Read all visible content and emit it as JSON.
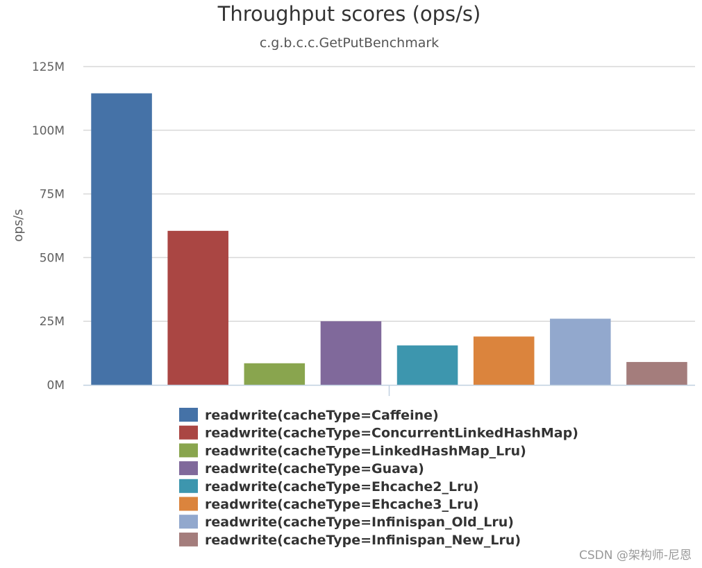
{
  "chart_data": {
    "type": "bar",
    "title": "Throughput scores (ops/s)",
    "subtitle": "c.g.b.c.c.GetPutBenchmark",
    "ylabel": "ops/s",
    "xlabel": "",
    "ylim": [
      0,
      125000000
    ],
    "yticks": [
      {
        "value": 0,
        "label": "0M"
      },
      {
        "value": 25000000,
        "label": "25M"
      },
      {
        "value": 50000000,
        "label": "50M"
      },
      {
        "value": 75000000,
        "label": "75M"
      },
      {
        "value": 100000000,
        "label": "100M"
      },
      {
        "value": 125000000,
        "label": "125M"
      }
    ],
    "grid": true,
    "legend_position": "bottom",
    "series": [
      {
        "name": "readwrite(cacheType=Caffeine)",
        "value": 114500000,
        "color": "#4572a7"
      },
      {
        "name": "readwrite(cacheType=ConcurrentLinkedHashMap)",
        "value": 60500000,
        "color": "#aa4643"
      },
      {
        "name": "readwrite(cacheType=LinkedHashMap_Lru)",
        "value": 8500000,
        "color": "#89a54e"
      },
      {
        "name": "readwrite(cacheType=Guava)",
        "value": 25000000,
        "color": "#80699b"
      },
      {
        "name": "readwrite(cacheType=Ehcache2_Lru)",
        "value": 15500000,
        "color": "#3d96ae"
      },
      {
        "name": "readwrite(cacheType=Ehcache3_Lru)",
        "value": 19000000,
        "color": "#db843d"
      },
      {
        "name": "readwrite(cacheType=Infinispan_Old_Lru)",
        "value": 26000000,
        "color": "#92a8cd"
      },
      {
        "name": "readwrite(cacheType=Infinispan_New_Lru)",
        "value": 9000000,
        "color": "#a47d7c"
      }
    ]
  },
  "watermark": "CSDN @架构师-尼恩"
}
